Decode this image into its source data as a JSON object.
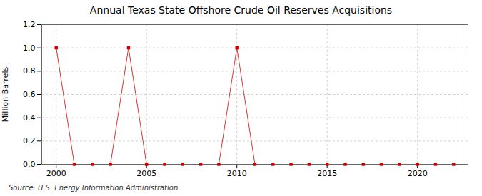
{
  "chart_data": {
    "type": "line",
    "title": "Annual Texas State Offshore Crude Oil Reserves Acquisitions",
    "ylabel": "Million Barrels",
    "source": "Source: U.S. Energy Information Administration",
    "x": [
      2000,
      2001,
      2002,
      2003,
      2004,
      2005,
      2006,
      2007,
      2008,
      2009,
      2010,
      2011,
      2012,
      2013,
      2014,
      2015,
      2016,
      2017,
      2018,
      2019,
      2020,
      2021,
      2022
    ],
    "values": [
      1.0,
      0.0,
      0.0,
      0.0,
      1.0,
      0.0,
      0.0,
      0.0,
      0.0,
      0.0,
      1.0,
      0.0,
      0.0,
      0.0,
      0.0,
      0.0,
      0.0,
      0.0,
      0.0,
      0.0,
      0.0,
      0.0,
      0.0
    ],
    "color": "#cc0000",
    "marker": "square",
    "line_style": "solid",
    "xlim": [
      1999.2,
      2022.8
    ],
    "xticks": [
      2000,
      2005,
      2010,
      2015,
      2020
    ],
    "ylim": [
      0.0,
      1.2
    ],
    "yticks": [
      {
        "value": 0.0,
        "label": "0.0"
      },
      0.2,
      0.4,
      0.6,
      0.8,
      {
        "value": 1.0,
        "label": "1.0"
      },
      1.2
    ],
    "grid": true
  }
}
